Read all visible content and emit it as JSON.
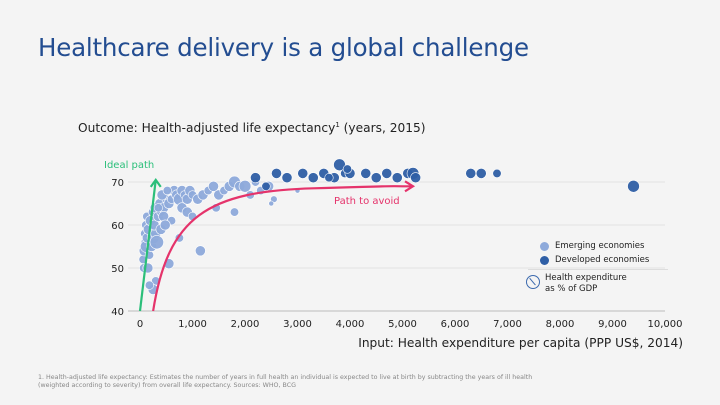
{
  "page": {
    "title": "Healthcare delivery is a global challenge",
    "subtitle_main": "Outcome: Health-adjusted life expectancy",
    "subtitle_sup": "1",
    "subtitle_tail": " (years, 2015)",
    "footnote_line1": "1. Health-adjusted life expectancy: Estimates the number of years in full health an individual is expected to live at birth by subtracting the years of ill health",
    "footnote_line2": "(weighted according to severity) from overall life expectancy. Sources: WHO, BCG"
  },
  "colors": {
    "title": "#234d91",
    "emerging": "#8eaadb",
    "developed": "#2f5fa6",
    "ideal_path": "#2bbf7a",
    "avoid_path": "#e5336b",
    "grid": "#e2e2e2"
  },
  "legend": {
    "emerging": "Emerging economies",
    "developed": "Developed economies",
    "bubble_line1": "Health expenditure",
    "bubble_line2": "as % of GDP"
  },
  "chart_data": {
    "type": "scatter",
    "title": "Outcome: Health-adjusted life expectancy (years, 2015)",
    "xlabel": "Input: Health expenditure per capita (PPP US$, 2014)",
    "ylabel": "",
    "xlim": [
      0,
      10000
    ],
    "ylim": [
      40,
      72
    ],
    "x_ticks": [
      0,
      1000,
      2000,
      3000,
      4000,
      5000,
      6000,
      7000,
      8000,
      9000,
      10000
    ],
    "x_tick_labels": [
      "0",
      "1,000",
      "2,000",
      "3,000",
      "4,000",
      "5,000",
      "6,000",
      "7,000",
      "8,000",
      "9,000",
      "10,000"
    ],
    "y_ticks": [
      40,
      50,
      60,
      70
    ],
    "y_tick_labels": [
      "40",
      "50",
      "60",
      "70"
    ],
    "grid": true,
    "bubble_size_meaning": "Health expenditure as % of GDP",
    "annotations": [
      {
        "text": "Ideal path",
        "type": "arrow",
        "from": [
          0,
          40
        ],
        "to": [
          300,
          70.5
        ]
      },
      {
        "text": "Path to avoid",
        "type": "curved-arrow",
        "from": [
          250,
          40
        ],
        "to": [
          5200,
          69
        ]
      }
    ],
    "series": [
      {
        "name": "Emerging economies",
        "points": [
          [
            60,
            52,
            5
          ],
          [
            80,
            54,
            6
          ],
          [
            100,
            56,
            5
          ],
          [
            120,
            55,
            7
          ],
          [
            90,
            58,
            5
          ],
          [
            140,
            57,
            6
          ],
          [
            110,
            60,
            5
          ],
          [
            160,
            59,
            6
          ],
          [
            130,
            62,
            5
          ],
          [
            200,
            61,
            6
          ],
          [
            70,
            50,
            5
          ],
          [
            150,
            50,
            6
          ],
          [
            180,
            53,
            5
          ],
          [
            220,
            55,
            6
          ],
          [
            250,
            57,
            7
          ],
          [
            300,
            58,
            6
          ],
          [
            320,
            56,
            8
          ],
          [
            270,
            60,
            6
          ],
          [
            240,
            63,
            5
          ],
          [
            290,
            64,
            6
          ],
          [
            350,
            62,
            6
          ],
          [
            400,
            63,
            5
          ],
          [
            380,
            65,
            6
          ],
          [
            450,
            64,
            6
          ],
          [
            500,
            66,
            5
          ],
          [
            420,
            67,
            6
          ],
          [
            550,
            65,
            6
          ],
          [
            600,
            66,
            5
          ],
          [
            650,
            68,
            6
          ],
          [
            520,
            68,
            5
          ],
          [
            700,
            67,
            6
          ],
          [
            750,
            66,
            7
          ],
          [
            800,
            68,
            6
          ],
          [
            850,
            67,
            5
          ],
          [
            900,
            66,
            6
          ],
          [
            950,
            68,
            6
          ],
          [
            1000,
            67,
            5
          ],
          [
            1100,
            66,
            6
          ],
          [
            1200,
            67,
            6
          ],
          [
            1300,
            68,
            5
          ],
          [
            1400,
            69,
            6
          ],
          [
            1500,
            67,
            6
          ],
          [
            1600,
            68,
            5
          ],
          [
            1700,
            69,
            6
          ],
          [
            1800,
            70,
            7
          ],
          [
            1900,
            69,
            6
          ],
          [
            2000,
            69,
            7
          ],
          [
            2100,
            67,
            5
          ],
          [
            2200,
            70,
            5
          ],
          [
            2300,
            68,
            5
          ],
          [
            2450,
            69,
            6
          ],
          [
            2550,
            66,
            4
          ],
          [
            2500,
            65,
            3
          ],
          [
            3000,
            68,
            3
          ],
          [
            750,
            57,
            5
          ],
          [
            1150,
            54,
            6
          ],
          [
            550,
            51,
            6
          ],
          [
            300,
            47,
            5
          ],
          [
            250,
            45,
            6
          ],
          [
            180,
            46,
            5
          ],
          [
            350,
            64,
            5
          ],
          [
            450,
            62,
            6
          ],
          [
            600,
            61,
            5
          ],
          [
            400,
            59,
            6
          ],
          [
            480,
            60,
            6
          ],
          [
            800,
            64,
            6
          ],
          [
            900,
            63,
            6
          ],
          [
            1000,
            62,
            5
          ],
          [
            1800,
            63,
            5
          ],
          [
            1450,
            64,
            5
          ]
        ]
      },
      {
        "name": "Developed economies",
        "points": [
          [
            2200,
            71,
            6
          ],
          [
            2400,
            69,
            5
          ],
          [
            2600,
            72,
            6
          ],
          [
            2800,
            71,
            6
          ],
          [
            3100,
            72,
            6
          ],
          [
            3300,
            71,
            6
          ],
          [
            3500,
            72,
            6
          ],
          [
            3700,
            71,
            6
          ],
          [
            3800,
            74,
            7
          ],
          [
            3900,
            72,
            5
          ],
          [
            4000,
            72,
            6
          ],
          [
            4300,
            72,
            6
          ],
          [
            4500,
            71,
            6
          ],
          [
            4700,
            72,
            6
          ],
          [
            4900,
            71,
            6
          ],
          [
            5100,
            72,
            6
          ],
          [
            5200,
            72,
            7
          ],
          [
            5250,
            71,
            6
          ],
          [
            6300,
            72,
            6
          ],
          [
            6500,
            72,
            6
          ],
          [
            6800,
            72,
            5
          ],
          [
            9400,
            69,
            7
          ],
          [
            3950,
            73,
            5
          ],
          [
            3600,
            71,
            5
          ]
        ]
      }
    ]
  }
}
